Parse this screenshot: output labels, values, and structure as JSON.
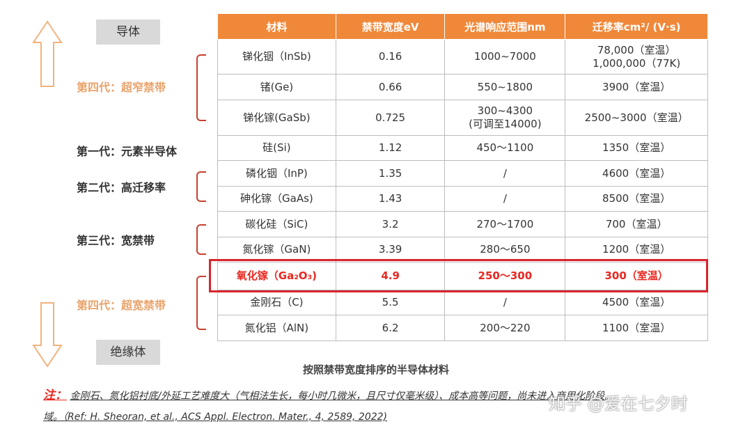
{
  "side": {
    "top_box": "导体",
    "bottom_box": "绝缘体"
  },
  "generations": {
    "fourth_narrow": "第四代：超窄禁带",
    "first": "第一代：元素半导体",
    "second": "第二代：高迁移率",
    "third": "第三代：宽禁带",
    "fourth_wide": "第四代：超宽禁带"
  },
  "table": {
    "headers": [
      "材料",
      "禁带宽度eV",
      "光谱响应范围nm",
      "迁移率cm²/ (V·s)"
    ],
    "rows": [
      {
        "material": "锑化铟（InSb)",
        "bandgap": "0.16",
        "spectrum": "1000~7000",
        "mobility": "78,000（室温）",
        "mobility2": "1,000,000（77K)"
      },
      {
        "material": "锗(Ge)",
        "bandgap": "0.66",
        "spectrum": "550~1800",
        "mobility": "3900（室温）"
      },
      {
        "material": "锑化镓(GaSb)",
        "bandgap": "0.725",
        "spectrum": "300~4300",
        "spectrum2": "(可调至14000)",
        "mobility": "2500~3000（室温）"
      },
      {
        "material": "硅(Si)",
        "bandgap": "1.12",
        "spectrum": "450～1100",
        "mobility": "1350（室温）"
      },
      {
        "material": "磷化铟（InP)",
        "bandgap": "1.35",
        "spectrum": "/",
        "mobility": "4600（室温）"
      },
      {
        "material": "砷化镓（GaAs)",
        "bandgap": "1.43",
        "spectrum": "/",
        "mobility": "8500（室温）"
      },
      {
        "material": "碳化硅（SiC)",
        "bandgap": "3.2",
        "spectrum": "270～1700",
        "mobility": "700（室温）"
      },
      {
        "material": "氮化镓（GaN)",
        "bandgap": "3.39",
        "spectrum": "280～650",
        "mobility": "1200（室温）"
      },
      {
        "material": "氧化镓（Ga₂O₃)",
        "bandgap": "4.9",
        "spectrum": "250～300",
        "mobility": "300（室温）"
      },
      {
        "material": "金刚石（C)",
        "bandgap": "5.5",
        "spectrum": "/",
        "mobility": "4500（室温）"
      },
      {
        "material": "氮化铝（AlN)",
        "bandgap": "6.2",
        "spectrum": "200～220",
        "mobility": "1100（室温）"
      }
    ]
  },
  "caption": "按照禁带宽度排序的半导体材料",
  "note": {
    "label": "注：",
    "line1": "金刚石、氮化铝衬底/外延工艺难度大（气相法生长，每小时几微米，且尺寸仅毫米级）、成本高等问题，尚未进入商用化阶段。",
    "line2": "域。（Ref: H. Sheoran, et al., ACS Appl. Electron. Mater., 4, 2589, 2022)"
  },
  "watermark": "知乎 @爱在七夕时",
  "colors": {
    "header_orange": "#f0883a",
    "highlight_red": "#e8271f",
    "arrow_orange": "#f2b27c",
    "label_orange": "#e9a36b"
  }
}
